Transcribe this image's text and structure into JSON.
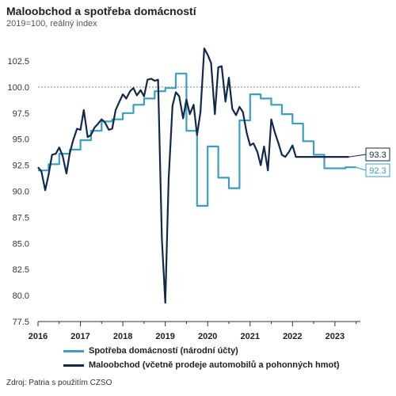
{
  "title": "Maloobchod a spotřeba domácností",
  "subtitle": "2019=100, reálný index",
  "source": "Zdroj: Patria s použitím CZSO",
  "chart_data": {
    "type": "line",
    "y_ticks": [
      "102.5",
      "100.0",
      "97.5",
      "95.0",
      "92.5",
      "90.0",
      "87.5",
      "85.0",
      "82.5",
      "80.0",
      "77.5"
    ],
    "x_ticks": [
      "2016",
      "2017",
      "2018",
      "2019",
      "2020",
      "2021",
      "2022",
      "2023"
    ],
    "ylim": [
      77.5,
      103.5
    ],
    "xlim": [
      2016.0,
      2023.6
    ],
    "reference_line": 100.0,
    "legend_position": "bottom",
    "series": [
      {
        "name": "Spotřeba domácností (národní účty)",
        "color": "#3a9fc0",
        "style": "step",
        "x": [
          2016.0,
          2016.25,
          2016.5,
          2016.75,
          2017.0,
          2017.25,
          2017.5,
          2017.75,
          2018.0,
          2018.25,
          2018.5,
          2018.75,
          2019.0,
          2019.25,
          2019.5,
          2019.75,
          2020.0,
          2020.25,
          2020.5,
          2020.75,
          2021.0,
          2021.25,
          2021.5,
          2021.75,
          2022.0,
          2022.25,
          2022.5,
          2022.75,
          2023.0,
          2023.25
        ],
        "values": [
          92.0,
          92.6,
          93.6,
          94.0,
          94.9,
          95.8,
          96.7,
          96.9,
          97.5,
          98.3,
          98.9,
          99.6,
          99.9,
          101.3,
          95.8,
          88.6,
          94.3,
          91.3,
          90.3,
          96.8,
          99.3,
          98.9,
          98.3,
          97.4,
          96.5,
          94.8,
          93.5,
          92.2,
          92.2,
          92.3
        ]
      },
      {
        "name": "Maloobchod (včetně prodeje automobilů a pohonných hmot)",
        "color": "#13294b",
        "style": "line",
        "x": [
          2016.0,
          2016.08,
          2016.17,
          2016.25,
          2016.33,
          2016.42,
          2016.5,
          2016.58,
          2016.67,
          2016.75,
          2016.83,
          2016.92,
          2017.0,
          2017.08,
          2017.17,
          2017.25,
          2017.33,
          2017.42,
          2017.5,
          2017.58,
          2017.67,
          2017.75,
          2017.83,
          2017.92,
          2018.0,
          2018.08,
          2018.17,
          2018.25,
          2018.33,
          2018.42,
          2018.5,
          2018.58,
          2018.67,
          2018.75,
          2018.83,
          2018.92,
          2019.0,
          2019.08,
          2019.17,
          2019.25,
          2019.33,
          2019.42,
          2019.5,
          2019.58,
          2019.67,
          2019.75,
          2019.83,
          2019.92,
          2020.0,
          2020.08,
          2020.17,
          2020.25,
          2020.33,
          2020.42,
          2020.5,
          2020.58,
          2020.67,
          2020.75,
          2020.83,
          2020.92,
          2021.0,
          2021.08,
          2021.17,
          2021.25,
          2021.33,
          2021.42,
          2021.5,
          2021.58,
          2021.67,
          2021.75,
          2021.83,
          2021.92,
          2022.0,
          2022.08,
          2022.17,
          2022.25,
          2022.33,
          2022.42,
          2022.5,
          2022.58,
          2022.67,
          2022.75,
          2022.83,
          2022.92,
          2023.0,
          2023.08,
          2023.17,
          2023.25,
          2023.33
        ],
        "values": [
          92.3,
          91.9,
          90.1,
          91.6,
          93.5,
          93.6,
          94.2,
          93.4,
          91.7,
          93.7,
          94.9,
          96.0,
          95.9,
          97.8,
          95.2,
          95.4,
          96.1,
          96.5,
          96.9,
          96.6,
          95.9,
          96.0,
          97.8,
          98.6,
          99.3,
          98.9,
          99.6,
          99.9,
          99.2,
          99.7,
          99.1,
          100.7,
          100.8,
          100.6,
          100.7,
          85.4,
          79.3,
          91.1,
          98.2,
          99.5,
          99.1,
          97.0,
          98.8,
          97.4,
          98.3,
          95.4,
          97.6,
          103.7,
          103.1,
          102.3,
          97.4,
          101.9,
          102.0,
          98.6,
          100.9,
          97.9,
          97.3,
          98.1,
          97.6,
          95.6,
          94.4,
          94.6,
          93.8,
          92.5,
          94.3,
          92.0,
          96.9,
          95.7,
          94.6,
          93.5,
          93.3,
          93.8,
          94.4,
          93.3,
          93.3,
          93.3,
          93.3,
          93.3,
          93.3,
          93.3,
          93.3,
          93.3,
          93.3,
          93.3,
          93.3,
          93.3,
          93.3,
          93.3,
          93.3
        ]
      }
    ],
    "end_labels": [
      "93.3",
      "92.3"
    ]
  }
}
